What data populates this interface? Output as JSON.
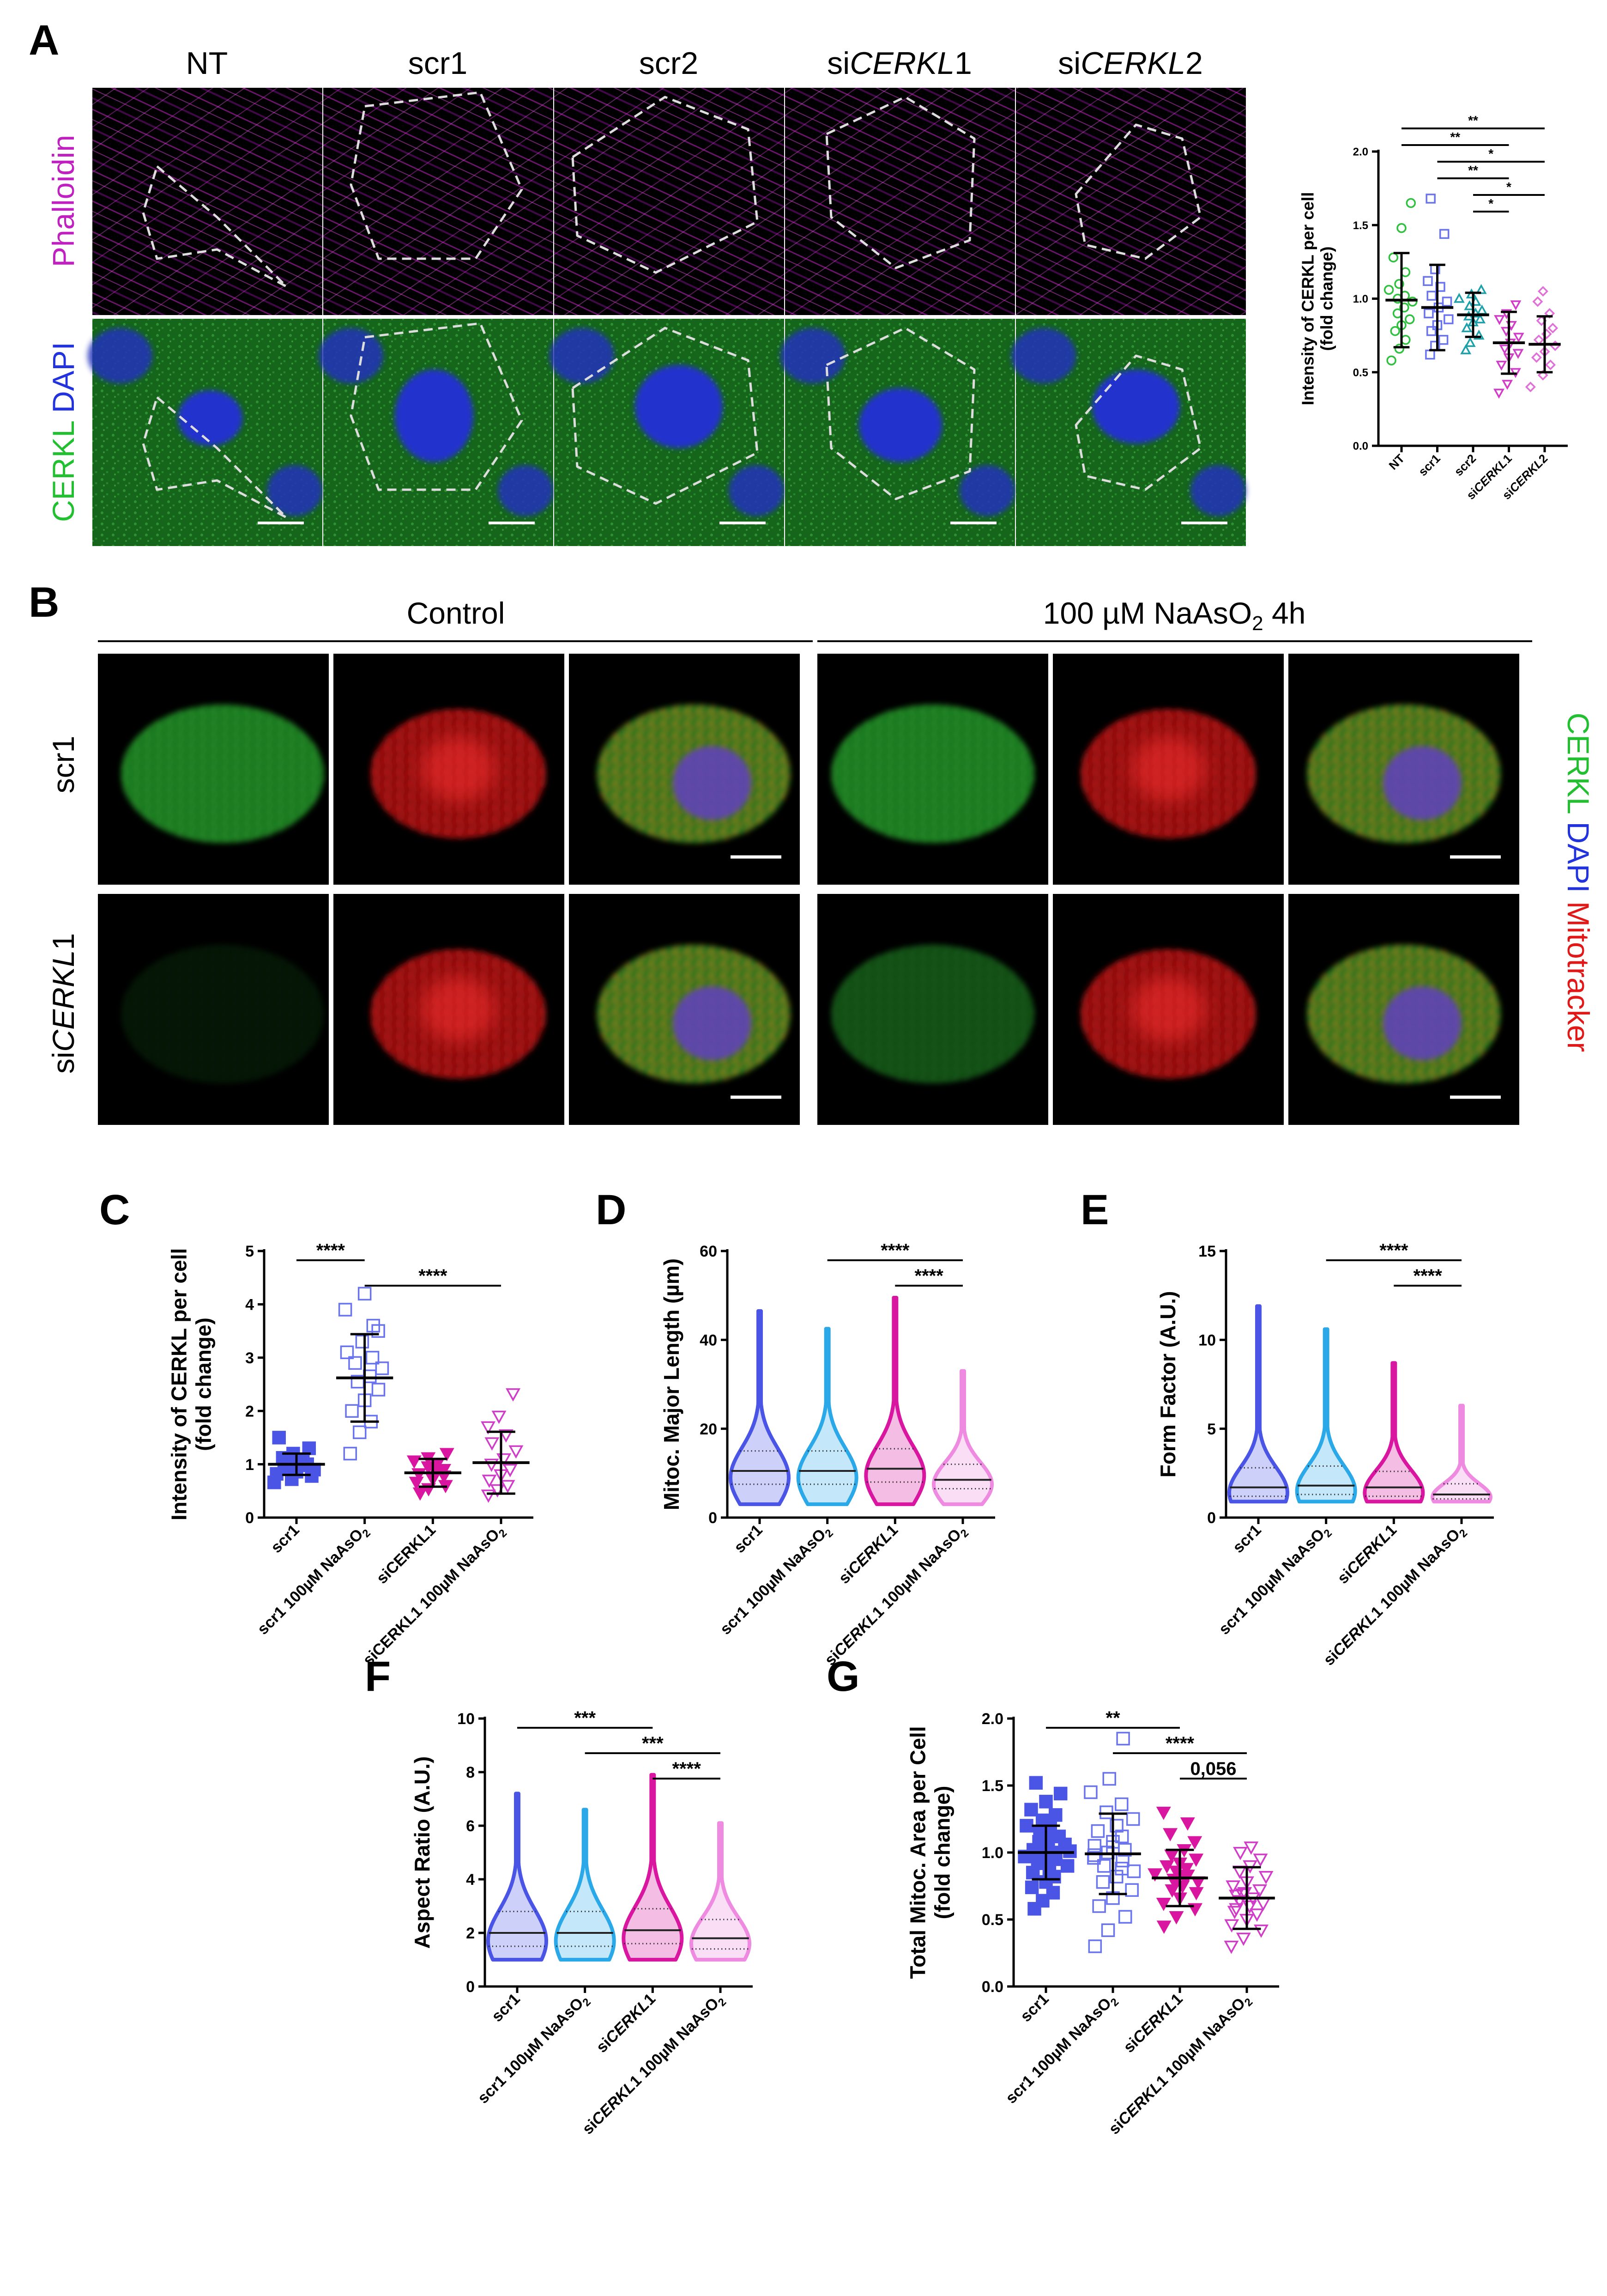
{
  "colors": {
    "phalloidin": "#c020c0",
    "cerkl": "#22c030",
    "dapi": "#2233dd",
    "mitotracker": "#e01818",
    "scr1": "#4a55e6",
    "scr1_ars": "#2aa8e8",
    "siCERKL1": "#d9169f",
    "siCERKL1_ars": "#ee8ae0",
    "NT": "#30c040",
    "scr2": "#1ea0a8"
  },
  "panel_A": {
    "letter": "A",
    "columns": [
      {
        "pre": "NT",
        "ital": "",
        "post": ""
      },
      {
        "pre": "scr1",
        "ital": "",
        "post": ""
      },
      {
        "pre": "scr2",
        "ital": "",
        "post": ""
      },
      {
        "pre": "si",
        "ital": "CERKL",
        "post": "1"
      },
      {
        "pre": "si",
        "ital": "CERKL",
        "post": "2"
      }
    ],
    "row_labels": {
      "phalloidin": "Phalloidin",
      "cerkl": "CERKL",
      "dapi": "DAPI"
    }
  },
  "panel_B": {
    "letter": "B",
    "group_control": "Control",
    "group_treat": {
      "pre": "100 µM NaAsO",
      "sub": "2",
      "post": " 4h"
    },
    "row_labels": [
      {
        "pre": "scr1",
        "ital": "",
        "post": ""
      },
      {
        "pre": "si",
        "ital": "CERKL",
        "post": "1"
      }
    ],
    "channel_labels": {
      "cerkl": "CERKL",
      "dapi": "DAPI",
      "mito": "Mitotracker"
    }
  },
  "chart_data": [
    {
      "id": "A",
      "type": "scatter",
      "ylabel": [
        "Intensity of CERKL per cell",
        "(fold change)"
      ],
      "ylim": [
        0,
        2.0
      ],
      "yticks": [
        "0.0",
        "0.5",
        "1.0",
        "1.5",
        "2.0"
      ],
      "categories": [
        [
          {
            "t": "NT",
            "i": false
          }
        ],
        [
          {
            "t": "scr1",
            "i": false
          }
        ],
        [
          {
            "t": "scr2",
            "i": false
          }
        ],
        [
          {
            "t": "si",
            "i": false
          },
          {
            "t": "CERKL",
            "i": true
          },
          {
            "t": "1",
            "i": false
          }
        ],
        [
          {
            "t": "si",
            "i": false
          },
          {
            "t": "CERKL",
            "i": true
          },
          {
            "t": "2",
            "i": false
          }
        ]
      ],
      "series": [
        {
          "color": "#30c040",
          "marker": "circle",
          "mean": 0.99,
          "sd": 0.32,
          "values": [
            0.58,
            0.66,
            0.72,
            0.78,
            0.82,
            0.86,
            0.9,
            0.94,
            0.98,
            1.0,
            1.02,
            1.06,
            1.1,
            1.18,
            1.28,
            1.48,
            1.65
          ]
        },
        {
          "color": "#6a74ee",
          "marker": "square",
          "mean": 0.94,
          "sd": 0.29,
          "values": [
            0.62,
            0.68,
            0.72,
            0.78,
            0.82,
            0.86,
            0.9,
            0.94,
            0.98,
            1.02,
            1.08,
            1.12,
            1.2,
            1.44,
            1.68
          ]
        },
        {
          "color": "#1ea0a8",
          "marker": "triangle",
          "mean": 0.89,
          "sd": 0.15,
          "values": [
            0.65,
            0.7,
            0.75,
            0.8,
            0.84,
            0.86,
            0.88,
            0.9,
            0.92,
            0.95,
            0.98,
            1.0,
            1.03,
            1.06
          ]
        },
        {
          "color": "#d03cc8",
          "marker": "triangle-down",
          "mean": 0.7,
          "sd": 0.21,
          "values": [
            0.36,
            0.42,
            0.5,
            0.55,
            0.6,
            0.63,
            0.66,
            0.7,
            0.74,
            0.78,
            0.82,
            0.86,
            0.9,
            0.96
          ]
        },
        {
          "color": "#e070d8",
          "marker": "diamond",
          "mean": 0.69,
          "sd": 0.19,
          "values": [
            0.4,
            0.48,
            0.55,
            0.6,
            0.64,
            0.68,
            0.72,
            0.76,
            0.8,
            0.85,
            0.9,
            0.98,
            1.05
          ]
        }
      ],
      "significance": [
        {
          "from": 0,
          "to": 4,
          "label": "**"
        },
        {
          "from": 0,
          "to": 3,
          "label": "**"
        },
        {
          "from": 1,
          "to": 4,
          "label": "*"
        },
        {
          "from": 1,
          "to": 3,
          "label": "**"
        },
        {
          "from": 2,
          "to": 4,
          "label": "*"
        },
        {
          "from": 2,
          "to": 3,
          "label": "*"
        }
      ]
    },
    {
      "id": "C",
      "type": "scatter",
      "ylabel": [
        "Intensity of CERKL per cell",
        "(fold change)"
      ],
      "ylim": [
        0,
        5
      ],
      "yticks": [
        "0",
        "1",
        "2",
        "3",
        "4",
        "5"
      ],
      "categories": [
        [
          {
            "t": "scr1",
            "i": false
          }
        ],
        [
          {
            "t": "scr1 100µM NaAsO",
            "i": false
          },
          {
            "t": "2",
            "i": false,
            "sub": true
          }
        ],
        [
          {
            "t": "siCERKL1",
            "i": false
          }
        ],
        [
          {
            "t": "siCERKL1 100µM NaAsO",
            "i": false
          },
          {
            "t": "2",
            "i": false,
            "sub": true
          }
        ]
      ],
      "series": [
        {
          "color": "#4a55e6",
          "marker": "square-filled",
          "mean": 1.0,
          "sd": 0.2,
          "values": [
            0.66,
            0.72,
            0.78,
            0.82,
            0.86,
            0.9,
            0.94,
            0.98,
            1.0,
            1.04,
            1.08,
            1.12,
            1.2,
            1.3,
            1.5
          ]
        },
        {
          "color": "#6a74ee",
          "marker": "square",
          "mean": 2.62,
          "sd": 0.82,
          "values": [
            1.2,
            1.6,
            1.8,
            2.0,
            2.2,
            2.4,
            2.55,
            2.65,
            2.8,
            2.9,
            3.0,
            3.1,
            3.3,
            3.5,
            3.9,
            4.2,
            3.6
          ]
        },
        {
          "color": "#d9169f",
          "marker": "triangle-down-filled",
          "mean": 0.84,
          "sd": 0.26,
          "values": [
            0.46,
            0.54,
            0.6,
            0.66,
            0.72,
            0.78,
            0.82,
            0.86,
            0.9,
            0.95,
            1.0,
            1.06,
            1.12,
            1.2
          ]
        },
        {
          "color": "#d03cc8",
          "marker": "triangle-down",
          "mean": 1.03,
          "sd": 0.58,
          "values": [
            0.42,
            0.52,
            0.6,
            0.7,
            0.8,
            0.9,
            1.0,
            1.1,
            1.25,
            1.4,
            1.55,
            1.7,
            1.9,
            2.32
          ]
        }
      ],
      "significance": [
        {
          "from": 0,
          "to": 1,
          "label": "****"
        },
        {
          "from": 1,
          "to": 3,
          "label": "****"
        }
      ]
    },
    {
      "id": "D",
      "type": "violin",
      "ylabel": [
        "Mitoc. Major Length (µm)"
      ],
      "ylim": [
        0,
        60
      ],
      "yticks": [
        "0",
        "20",
        "40",
        "60"
      ],
      "categories": [
        [
          {
            "t": "scr1",
            "i": false
          }
        ],
        [
          {
            "t": "scr1 100µM NaAsO",
            "i": false
          },
          {
            "t": "2",
            "i": false,
            "sub": true
          }
        ],
        [
          {
            "t": "si",
            "i": false
          },
          {
            "t": "CERKL",
            "i": true
          },
          {
            "t": "1",
            "i": false
          }
        ],
        [
          {
            "t": "si",
            "i": false
          },
          {
            "t": "CERKL",
            "i": true
          },
          {
            "t": "1 100µM NaAsO",
            "i": false
          },
          {
            "t": "2",
            "i": false,
            "sub": true
          }
        ]
      ],
      "series": [
        {
          "color": "#4a55e6",
          "min": 3,
          "max": 46.5,
          "median": 10.5,
          "q1": 7.5,
          "q3": 15,
          "mode": 9
        },
        {
          "color": "#2aa8e8",
          "min": 3,
          "max": 42.5,
          "median": 10.5,
          "q1": 7.5,
          "q3": 15,
          "mode": 9
        },
        {
          "color": "#d9169f",
          "min": 3,
          "max": 49.5,
          "median": 11,
          "q1": 8,
          "q3": 15.5,
          "mode": 9.5
        },
        {
          "color": "#ee8ae0",
          "min": 3,
          "max": 33,
          "median": 8.5,
          "q1": 6.5,
          "q3": 12,
          "mode": 7.5
        }
      ],
      "significance": [
        {
          "from": 1,
          "to": 3,
          "label": "****"
        },
        {
          "from": 2,
          "to": 3,
          "label": "****"
        }
      ]
    },
    {
      "id": "E",
      "type": "violin",
      "ylabel": [
        "Form Factor (A.U.)"
      ],
      "ylim": [
        0,
        15
      ],
      "yticks": [
        "0",
        "5",
        "10",
        "15"
      ],
      "categories": [
        [
          {
            "t": "scr1",
            "i": false
          }
        ],
        [
          {
            "t": "scr1 100µM NaAsO",
            "i": false
          },
          {
            "t": "2",
            "i": false,
            "sub": true
          }
        ],
        [
          {
            "t": "si",
            "i": false
          },
          {
            "t": "CERKL",
            "i": true
          },
          {
            "t": "1",
            "i": false
          }
        ],
        [
          {
            "t": "si",
            "i": false
          },
          {
            "t": "CERKL",
            "i": true
          },
          {
            "t": "1 100µM NaAsO",
            "i": false
          },
          {
            "t": "2",
            "i": false,
            "sub": true
          }
        ]
      ],
      "series": [
        {
          "color": "#4a55e6",
          "min": 0.9,
          "max": 11.9,
          "median": 1.7,
          "q1": 1.2,
          "q3": 2.8,
          "mode": 1.4
        },
        {
          "color": "#2aa8e8",
          "min": 0.9,
          "max": 10.6,
          "median": 1.8,
          "q1": 1.3,
          "q3": 2.9,
          "mode": 1.5
        },
        {
          "color": "#d9169f",
          "min": 0.9,
          "max": 8.7,
          "median": 1.7,
          "q1": 1.2,
          "q3": 2.6,
          "mode": 1.4
        },
        {
          "color": "#ee8ae0",
          "min": 0.9,
          "max": 6.3,
          "median": 1.3,
          "q1": 1.05,
          "q3": 1.9,
          "mode": 1.15
        }
      ],
      "significance": [
        {
          "from": 1,
          "to": 3,
          "label": "****"
        },
        {
          "from": 2,
          "to": 3,
          "label": "****"
        }
      ]
    },
    {
      "id": "F",
      "type": "violin",
      "ylabel": [
        "Aspect Ratio (A.U.)"
      ],
      "ylim": [
        0,
        10
      ],
      "yticks": [
        "0",
        "2",
        "4",
        "6",
        "8",
        "10"
      ],
      "categories": [
        [
          {
            "t": "scr1",
            "i": false
          }
        ],
        [
          {
            "t": "scr1 100µM NaAsO",
            "i": false
          },
          {
            "t": "2",
            "i": false,
            "sub": true
          }
        ],
        [
          {
            "t": "si",
            "i": false
          },
          {
            "t": "CERKL",
            "i": true
          },
          {
            "t": "1",
            "i": false
          }
        ],
        [
          {
            "t": "si",
            "i": false
          },
          {
            "t": "CERKL",
            "i": true
          },
          {
            "t": "1 100µM NaAsO",
            "i": false
          },
          {
            "t": "2",
            "i": false,
            "sub": true
          }
        ]
      ],
      "series": [
        {
          "color": "#4a55e6",
          "min": 1.0,
          "max": 7.2,
          "median": 2.0,
          "q1": 1.5,
          "q3": 2.8,
          "mode": 1.7
        },
        {
          "color": "#2aa8e8",
          "min": 1.0,
          "max": 6.6,
          "median": 2.0,
          "q1": 1.5,
          "q3": 2.8,
          "mode": 1.7
        },
        {
          "color": "#d9169f",
          "min": 1.0,
          "max": 7.9,
          "median": 2.1,
          "q1": 1.6,
          "q3": 2.9,
          "mode": 1.8
        },
        {
          "color": "#ee8ae0",
          "min": 1.0,
          "max": 6.1,
          "median": 1.8,
          "q1": 1.4,
          "q3": 2.5,
          "mode": 1.6
        }
      ],
      "significance": [
        {
          "from": 0,
          "to": 2,
          "label": "***"
        },
        {
          "from": 1,
          "to": 3,
          "label": "***"
        },
        {
          "from": 2,
          "to": 3,
          "label": "****"
        }
      ]
    },
    {
      "id": "G",
      "type": "scatter",
      "ylabel": [
        "Total Mitoc. Area per Cell",
        "(fold change)"
      ],
      "ylim": [
        0,
        2.0
      ],
      "yticks": [
        "0.0",
        "0.5",
        "1.0",
        "1.5",
        "2.0"
      ],
      "categories": [
        [
          {
            "t": "scr1",
            "i": false
          }
        ],
        [
          {
            "t": "scr1 100µM NaAsO",
            "i": false
          },
          {
            "t": "2",
            "i": false,
            "sub": true
          }
        ],
        [
          {
            "t": "si",
            "i": false
          },
          {
            "t": "CERKL",
            "i": true
          },
          {
            "t": "1",
            "i": false
          }
        ],
        [
          {
            "t": "si",
            "i": false
          },
          {
            "t": "CERKL",
            "i": true
          },
          {
            "t": "1 100µM NaAsO",
            "i": false
          },
          {
            "t": "2",
            "i": false,
            "sub": true
          }
        ]
      ],
      "series": [
        {
          "color": "#4a55e6",
          "marker": "square-filled",
          "mean": 1.0,
          "sd": 0.2,
          "values": [
            0.58,
            0.64,
            0.7,
            0.74,
            0.78,
            0.82,
            0.85,
            0.88,
            0.9,
            0.92,
            0.95,
            0.97,
            0.99,
            1.0,
            1.02,
            1.04,
            1.06,
            1.08,
            1.1,
            1.12,
            1.15,
            1.18,
            1.2,
            1.24,
            1.28,
            1.32,
            1.38,
            1.44,
            1.52,
            0.96,
            1.01,
            0.93
          ]
        },
        {
          "color": "#6a74ee",
          "marker": "square",
          "mean": 0.99,
          "sd": 0.3,
          "values": [
            0.3,
            0.42,
            0.52,
            0.6,
            0.66,
            0.72,
            0.78,
            0.82,
            0.86,
            0.9,
            0.94,
            0.98,
            1.0,
            1.02,
            1.05,
            1.08,
            1.12,
            1.16,
            1.2,
            1.25,
            1.3,
            1.36,
            1.45,
            1.55,
            1.85,
            0.96,
            1.04,
            0.88
          ]
        },
        {
          "color": "#d9169f",
          "marker": "triangle-down-filled",
          "mean": 0.81,
          "sd": 0.21,
          "values": [
            0.45,
            0.52,
            0.58,
            0.62,
            0.66,
            0.7,
            0.72,
            0.75,
            0.78,
            0.8,
            0.82,
            0.84,
            0.86,
            0.88,
            0.9,
            0.92,
            0.95,
            0.98,
            1.02,
            1.08,
            1.14,
            1.22,
            1.3,
            0.77,
            0.83
          ]
        },
        {
          "color": "#d03cc8",
          "marker": "triangle-down",
          "mean": 0.66,
          "sd": 0.23,
          "values": [
            0.3,
            0.36,
            0.42,
            0.46,
            0.5,
            0.54,
            0.58,
            0.6,
            0.62,
            0.64,
            0.66,
            0.68,
            0.7,
            0.72,
            0.75,
            0.78,
            0.82,
            0.86,
            0.9,
            0.95,
            1.0,
            1.04,
            0.56,
            0.69
          ]
        }
      ],
      "significance": [
        {
          "from": 0,
          "to": 2,
          "label": "**"
        },
        {
          "from": 1,
          "to": 3,
          "label": "****"
        },
        {
          "from": 2,
          "to": 3,
          "label": "0,056"
        }
      ]
    }
  ]
}
